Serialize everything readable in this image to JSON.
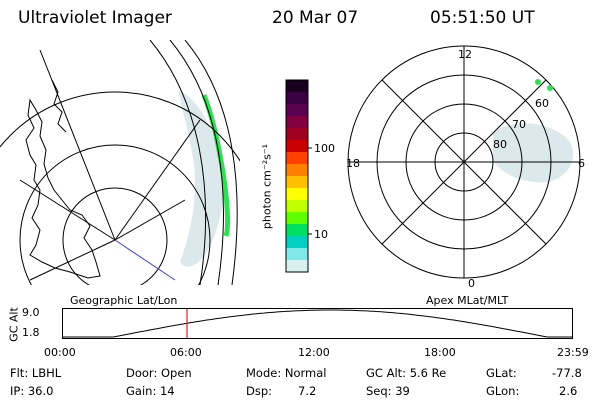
{
  "header": {
    "instrument": "Ultraviolet Imager",
    "date": "20 Mar 07",
    "time": "05:51:50 UT"
  },
  "colorbar": {
    "unit_label": "photon cm⁻²s⁻¹",
    "tick_labels": [
      "100",
      "10"
    ],
    "colors": [
      "#1a0020",
      "#3a0040",
      "#5a0050",
      "#800040",
      "#a00020",
      "#c80000",
      "#ff4000",
      "#ff8000",
      "#ffc000",
      "#ffff00",
      "#c0ff00",
      "#60ff00",
      "#00e060",
      "#00d0c0",
      "#80e8e8",
      "#d8f0f0"
    ]
  },
  "polar_plot": {
    "mlt_labels": {
      "top": "12",
      "left": "18",
      "right": "6",
      "bottom": "0"
    },
    "lat_labels": [
      "80",
      "70",
      "60"
    ]
  },
  "map_labels": {
    "left": "Geographic Lat/Lon",
    "right": "Apex MLat/MLT"
  },
  "altitude_plot": {
    "axis_label": "GC Alt",
    "y_max": "9.0",
    "y_min": "1.8",
    "x_ticks": [
      "00:00",
      "06:00",
      "12:00",
      "18:00",
      "23:59"
    ],
    "current_time_hours": 5.86
  },
  "info": {
    "flt": "Flt: LBHL",
    "ip": "IP: 36.0",
    "door": "Door: Open",
    "gain": "Gain: 14",
    "mode": "Mode: Normal",
    "dsp_label": "Dsp:",
    "dsp_value": "7.2",
    "gcalt": "GC Alt: 5.6 Re",
    "seq": "Seq: 39",
    "glat_label": "GLat:",
    "glat_value": "-77.8",
    "glon_label": "GLon:",
    "glon_value": "2.6"
  }
}
